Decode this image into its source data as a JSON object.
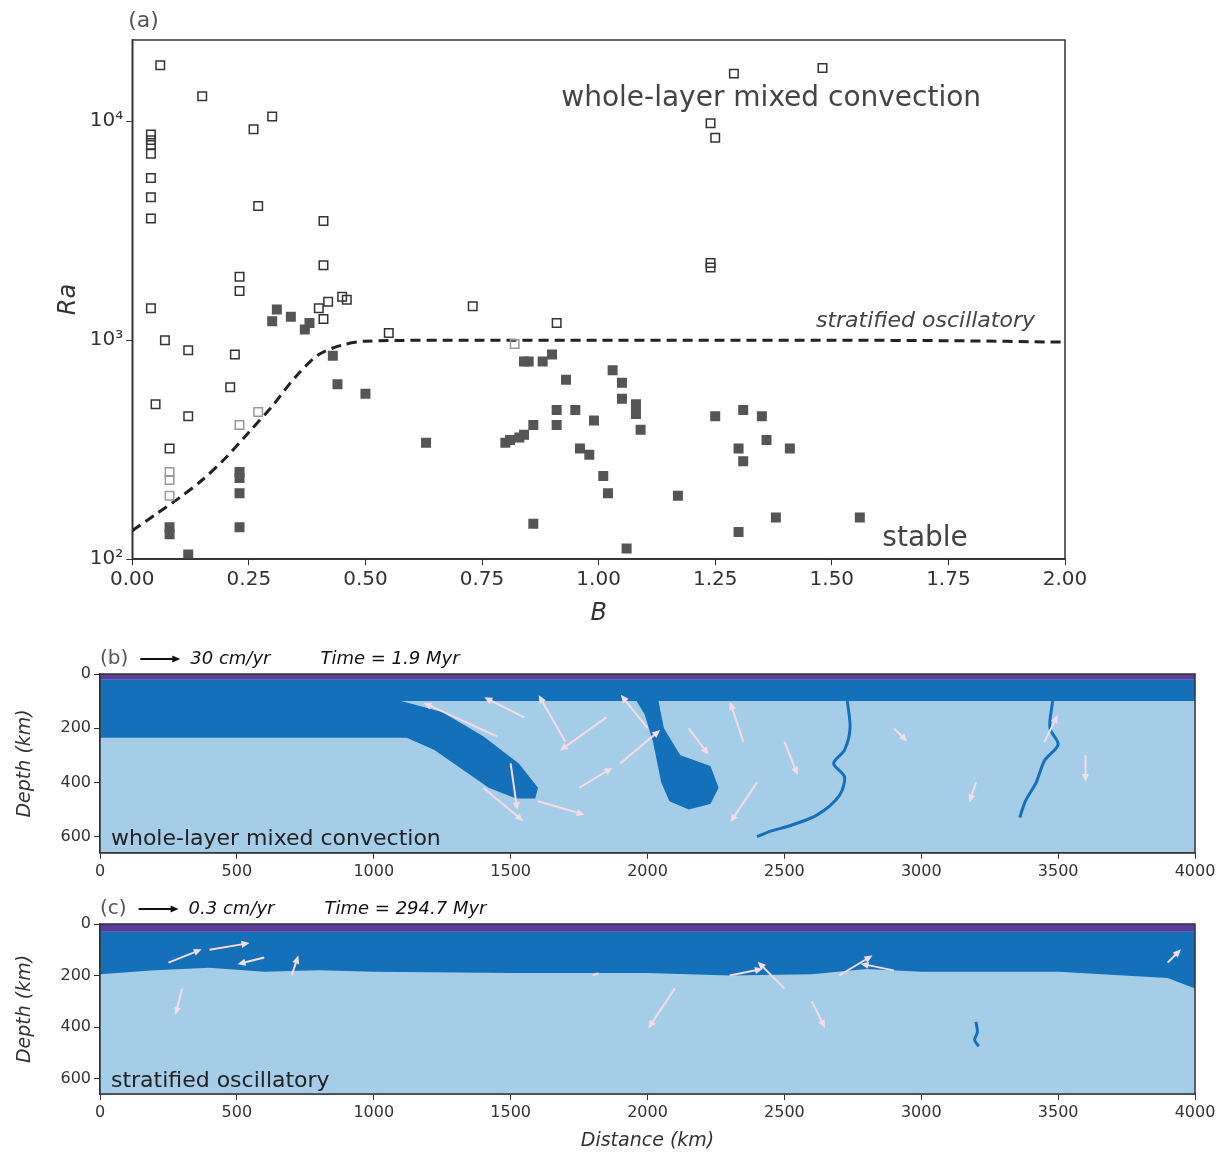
{
  "chart_data": [
    {
      "type": "scatter",
      "title": "(a)",
      "x_label": "B",
      "y_label": "Ra",
      "log": "y",
      "grid": false,
      "xlim": [
        0,
        2
      ],
      "xticks": [
        {
          "value": 0,
          "label": "0.00"
        },
        {
          "value": 0.25,
          "label": "0.25"
        },
        {
          "value": 0.5,
          "label": "0.50"
        },
        {
          "value": 0.75,
          "label": "0.75"
        },
        {
          "value": 1,
          "label": "1.00"
        },
        {
          "value": 1.25,
          "label": "1.25"
        },
        {
          "value": 1.5,
          "label": "1.50"
        },
        {
          "value": 1.75,
          "label": "1.75"
        },
        {
          "value": 2,
          "label": "2.00"
        }
      ],
      "ylim": [
        100,
        23500
      ],
      "yticks": [
        {
          "value": 100,
          "label": "10²"
        },
        {
          "value": 1000,
          "label": "10³"
        },
        {
          "value": 10000,
          "label": "10⁴"
        }
      ],
      "series": [
        {
          "marker": "square",
          "color": "#555555",
          "x": [
            0.31,
            0.3,
            0.34,
            0.37,
            0.38,
            0.43,
            0.44,
            0.5,
            0.63,
            0.08,
            0.08,
            0.12,
            0.23,
            0.23,
            0.23,
            0.23,
            0.8,
            0.81,
            0.83,
            0.84,
            0.86,
            0.86,
            0.84,
            0.85,
            0.88,
            0.9,
            0.93,
            0.91,
            0.95,
            0.91,
            0.96,
            0.98,
            0.99,
            1.01,
            1.02,
            1.03,
            1.05,
            1.05,
            1.08,
            1.08,
            1.09,
            1.06,
            1.17,
            1.25,
            1.3,
            1.31,
            1.31,
            1.35,
            1.36,
            1.38,
            1.41,
            1.3,
            1.56
          ],
          "values": [
            1380,
            1220,
            1280,
            1120,
            1200,
            850,
            630,
            570,
            340,
            140,
            130,
            105,
            250,
            235,
            200,
            140,
            340,
            350,
            360,
            370,
            410,
            145,
            800,
            800,
            800,
            860,
            660,
            480,
            480,
            410,
            320,
            300,
            430,
            240,
            200,
            730,
            640,
            540,
            510,
            460,
            390,
            112,
            195,
            450,
            320,
            280,
            480,
            450,
            350,
            155,
            320,
            133,
            155
          ]
        },
        {
          "marker": "square-open",
          "color": "#333333",
          "x": [
            0.06,
            0.15,
            0.04,
            0.04,
            0.04,
            0.04,
            0.04,
            0.04,
            0.04,
            0.04,
            0.05,
            0.07,
            0.12,
            0.12,
            0.08,
            0.21,
            0.22,
            0.23,
            0.23,
            0.26,
            0.27,
            0.3,
            0.41,
            0.41,
            0.4,
            0.41,
            0.42,
            0.45,
            0.46,
            0.55,
            0.73,
            0.91,
            1.24,
            1.25,
            1.29,
            1.48,
            1.24,
            1.24
          ],
          "values": [
            18000,
            13000,
            8700,
            8200,
            7800,
            7100,
            5500,
            4500,
            3600,
            1400,
            510,
            1000,
            900,
            450,
            320,
            610,
            860,
            1950,
            1680,
            9200,
            4100,
            10500,
            3500,
            2200,
            1400,
            1250,
            1500,
            1580,
            1530,
            1080,
            1430,
            1200,
            9800,
            8400,
            16500,
            17500,
            2250,
            2150
          ]
        },
        {
          "marker": "square-open",
          "color": "#999999",
          "x": [
            0.08,
            0.08,
            0.08,
            0.27,
            0.23,
            0.82
          ],
          "values": [
            250,
            230,
            195,
            470,
            410,
            960
          ]
        },
        {
          "type": "line",
          "name": "stratified oscillatory",
          "line_style": "dashed",
          "color": "#222222",
          "x": [
            0,
            0.05,
            0.1,
            0.15,
            0.2,
            0.25,
            0.3,
            0.35,
            0.4,
            0.45,
            0.5,
            0.75,
            1.0,
            1.25,
            1.5,
            1.75,
            2.0
          ],
          "values": [
            135,
            160,
            190,
            230,
            290,
            380,
            500,
            680,
            860,
            950,
            990,
            1000,
            1000,
            1000,
            1000,
            995,
            980
          ]
        }
      ],
      "annotations": [
        {
          "text": "whole-layer mixed convection",
          "x": 1.37,
          "y": 12700
        },
        {
          "text": "stable",
          "x": 1.7,
          "y": 124
        }
      ]
    },
    {
      "type": "field",
      "title": "(b)",
      "subtitle": "Time = 1.9 Myr",
      "y_label": "Depth (km)",
      "xlim": [
        0,
        4000
      ],
      "xticks": [
        0,
        500,
        1000,
        1500,
        2000,
        2500,
        3000,
        3500,
        4000
      ],
      "ylim": [
        660,
        0
      ],
      "yticks": [
        0,
        200,
        400,
        600
      ],
      "reference_arrow": {
        "value": 30,
        "label": "30 cm/yr"
      },
      "series": [
        {
          "type": "polygon",
          "color": "#a6cde8",
          "x": [
            0,
            4000,
            4000,
            0
          ],
          "values": [
            0,
            0,
            660,
            660
          ]
        },
        {
          "type": "polygon",
          "color": "#1470b8",
          "x": [
            0,
            4000,
            4000,
            0
          ],
          "values": [
            20,
            20,
            100,
            100
          ]
        },
        {
          "type": "polygon",
          "color": "#1470b8",
          "x": [
            0,
            1100,
            1250,
            1400,
            1530,
            1600,
            1590,
            1520,
            1420,
            1320,
            1220,
            1120,
            0
          ],
          "values": [
            100,
            100,
            140,
            230,
            330,
            420,
            460,
            460,
            420,
            350,
            280,
            235,
            235
          ]
        },
        {
          "type": "polygon",
          "color": "#1470b8",
          "x": [
            1960,
            2040,
            2060,
            2120,
            2230,
            2260,
            2230,
            2150,
            2080,
            2050,
            2020,
            1990
          ],
          "values": [
            100,
            100,
            200,
            300,
            340,
            420,
            480,
            500,
            470,
            400,
            250,
            150
          ]
        },
        {
          "type": "line",
          "color": "#1470b8",
          "x": [
            2730,
            2740,
            2720,
            2680,
            2720,
            2700,
            2620,
            2520,
            2450,
            2400
          ],
          "values": [
            100,
            200,
            280,
            330,
            380,
            450,
            520,
            560,
            580,
            600
          ]
        },
        {
          "type": "line",
          "color": "#1470b8",
          "x": [
            3480,
            3470,
            3500,
            3450,
            3420,
            3380,
            3360
          ],
          "values": [
            100,
            200,
            260,
            320,
            400,
            470,
            530
          ]
        },
        {
          "type": "polygon",
          "color": "#5b3e9a",
          "x": [
            0,
            4000,
            4000,
            0
          ],
          "values": [
            0,
            0,
            20,
            20
          ]
        }
      ],
      "arrows": {
        "color": "#f4dbe4",
        "x": [
          1450,
          1550,
          1700,
          1500,
          1400,
          1600,
          1750,
          1900,
          2000,
          1850,
          2150,
          2350,
          2400,
          2500,
          2900,
          3450,
          3600,
          3200
        ],
        "y": [
          230,
          160,
          250,
          330,
          420,
          470,
          420,
          330,
          200,
          160,
          200,
          250,
          400,
          250,
          200,
          250,
          300,
          400
        ],
        "vx": [
          -55,
          -30,
          -20,
          5,
          30,
          35,
          25,
          30,
          -20,
          -35,
          15,
          -10,
          -20,
          10,
          10,
          10,
          0,
          -5
        ],
        "vz": [
          -25,
          -15,
          -35,
          35,
          25,
          10,
          -15,
          -25,
          -25,
          25,
          20,
          -30,
          30,
          25,
          10,
          -20,
          20,
          15
        ]
      },
      "annotations": [
        {
          "text": "whole-layer mixed convection",
          "x": 40,
          "y": 610
        }
      ]
    },
    {
      "type": "field",
      "title": "(c)",
      "subtitle": "Time = 294.7 Myr",
      "x_label": "Distance (km)",
      "y_label": "Depth (km)",
      "xlim": [
        0,
        4000
      ],
      "xticks": [
        0,
        500,
        1000,
        1500,
        2000,
        2500,
        3000,
        3500,
        4000
      ],
      "ylim": [
        660,
        0
      ],
      "yticks": [
        0,
        200,
        400,
        600
      ],
      "reference_arrow": {
        "value": 0.3,
        "label": "0.3 cm/yr"
      },
      "series": [
        {
          "type": "polygon",
          "color": "#a6cde8",
          "x": [
            0,
            4000,
            4000,
            0
          ],
          "values": [
            0,
            0,
            660,
            660
          ]
        },
        {
          "type": "polygon",
          "color": "#1470b8",
          "x": [
            0,
            4000,
            4000,
            3950,
            3900,
            3500,
            3000,
            2800,
            2600,
            2300,
            2000,
            1500,
            1000,
            800,
            600,
            400,
            200,
            0
          ],
          "values": [
            30,
            30,
            250,
            230,
            210,
            185,
            185,
            175,
            195,
            200,
            190,
            190,
            185,
            180,
            185,
            170,
            180,
            195
          ]
        },
        {
          "type": "line",
          "color": "#1470b8",
          "x": [
            3200,
            3205,
            3195,
            3210
          ],
          "values": [
            380,
            420,
            450,
            475
          ]
        },
        {
          "type": "polygon",
          "color": "#5b3e9a",
          "x": [
            0,
            4000,
            4000,
            0
          ],
          "values": [
            0,
            0,
            30,
            30
          ]
        }
      ],
      "arrows": {
        "color": "#f4dbe4",
        "x": [
          250,
          400,
          600,
          300,
          700,
          2100,
          2300,
          2500,
          2700,
          2900,
          2600,
          3900,
          1800
        ],
        "y": [
          150,
          100,
          130,
          250,
          200,
          250,
          200,
          250,
          200,
          180,
          300,
          150,
          200
        ],
        "vx": [
          0.25,
          0.3,
          -0.2,
          -0.05,
          0.05,
          -0.2,
          0.25,
          -0.2,
          0.25,
          -0.25,
          0.1,
          0.1,
          0.05
        ],
        "vz": [
          -0.1,
          -0.05,
          0.05,
          0.2,
          -0.15,
          0.3,
          -0.05,
          -0.2,
          -0.15,
          -0.05,
          0.2,
          -0.1,
          -0.02
        ]
      },
      "annotations": [
        {
          "text": "stratified oscillatory",
          "x": 40,
          "y": 610
        }
      ]
    }
  ]
}
